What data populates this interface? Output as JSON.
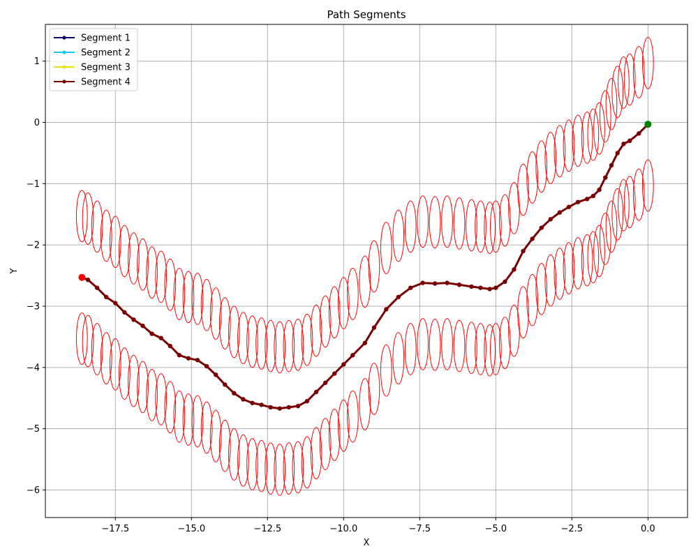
{
  "chart_data": {
    "type": "line",
    "title": "Path Segments",
    "xlabel": "X",
    "ylabel": "Y",
    "xlim": [
      -19.8,
      1.3
    ],
    "ylim": [
      -6.45,
      1.6
    ],
    "xticks": [
      -17.5,
      -15.0,
      -12.5,
      -10.0,
      -7.5,
      -5.0,
      -2.5,
      0.0
    ],
    "xtick_labels": [
      "−17.5",
      "−15.0",
      "−12.5",
      "−10.0",
      "−7.5",
      "−5.0",
      "−2.5",
      "0.0"
    ],
    "yticks": [
      1,
      0,
      -1,
      -2,
      -3,
      -4,
      -5,
      -6
    ],
    "ytick_labels": [
      "1",
      "0",
      "−1",
      "−2",
      "−3",
      "−4",
      "−5",
      "−6"
    ],
    "grid": true,
    "legend_position": "top-left",
    "legend": [
      {
        "label": "Segment 1",
        "color": "#0a0a7a"
      },
      {
        "label": "Segment 2",
        "color": "#1ec8f0"
      },
      {
        "label": "Segment 3",
        "color": "#f0e010"
      },
      {
        "label": "Segment 4",
        "color": "#7a0000"
      }
    ],
    "path": {
      "name": "Segment 4",
      "color": "#7a0000",
      "x": [
        0.0,
        -0.3,
        -0.6,
        -0.8,
        -1.0,
        -1.2,
        -1.4,
        -1.6,
        -1.8,
        -2.0,
        -2.3,
        -2.6,
        -2.9,
        -3.2,
        -3.5,
        -3.8,
        -4.1,
        -4.4,
        -4.7,
        -5.0,
        -5.2,
        -5.5,
        -5.8,
        -6.2,
        -6.6,
        -7.0,
        -7.4,
        -7.8,
        -8.2,
        -8.6,
        -9.0,
        -9.3,
        -9.7,
        -10.0,
        -10.3,
        -10.6,
        -10.9,
        -11.2,
        -11.5,
        -11.8,
        -12.1,
        -12.4,
        -12.7,
        -13.0,
        -13.3,
        -13.6,
        -13.9,
        -14.2,
        -14.5,
        -14.8,
        -15.1,
        -15.4,
        -15.7,
        -16.0,
        -16.3,
        -16.6,
        -16.9,
        -17.2,
        -17.5,
        -17.8,
        -18.1,
        -18.4,
        -18.6
      ],
      "y": [
        -0.03,
        -0.18,
        -0.3,
        -0.35,
        -0.5,
        -0.7,
        -0.9,
        -1.1,
        -1.2,
        -1.25,
        -1.3,
        -1.38,
        -1.47,
        -1.58,
        -1.72,
        -1.9,
        -2.1,
        -2.4,
        -2.6,
        -2.7,
        -2.72,
        -2.7,
        -2.68,
        -2.65,
        -2.62,
        -2.63,
        -2.62,
        -2.7,
        -2.85,
        -3.05,
        -3.35,
        -3.6,
        -3.8,
        -3.95,
        -4.1,
        -4.25,
        -4.4,
        -4.55,
        -4.63,
        -4.65,
        -4.67,
        -4.65,
        -4.61,
        -4.58,
        -4.52,
        -4.42,
        -4.28,
        -4.12,
        -3.98,
        -3.88,
        -3.85,
        -3.8,
        -3.65,
        -3.52,
        -3.45,
        -3.32,
        -3.22,
        -3.1,
        -2.95,
        -2.85,
        -2.7,
        -2.57,
        -2.53
      ]
    },
    "start_point": {
      "x": 0.0,
      "y": -0.03,
      "color": "#008000"
    },
    "end_point": {
      "x": -18.6,
      "y": -2.53,
      "color": "#ff0000"
    },
    "uncertainty_ellipses": {
      "color": "#ff0000",
      "offset_y": 1.0,
      "semi_axis_x": 0.18,
      "semi_axis_y": 0.42,
      "stride": 1
    }
  }
}
